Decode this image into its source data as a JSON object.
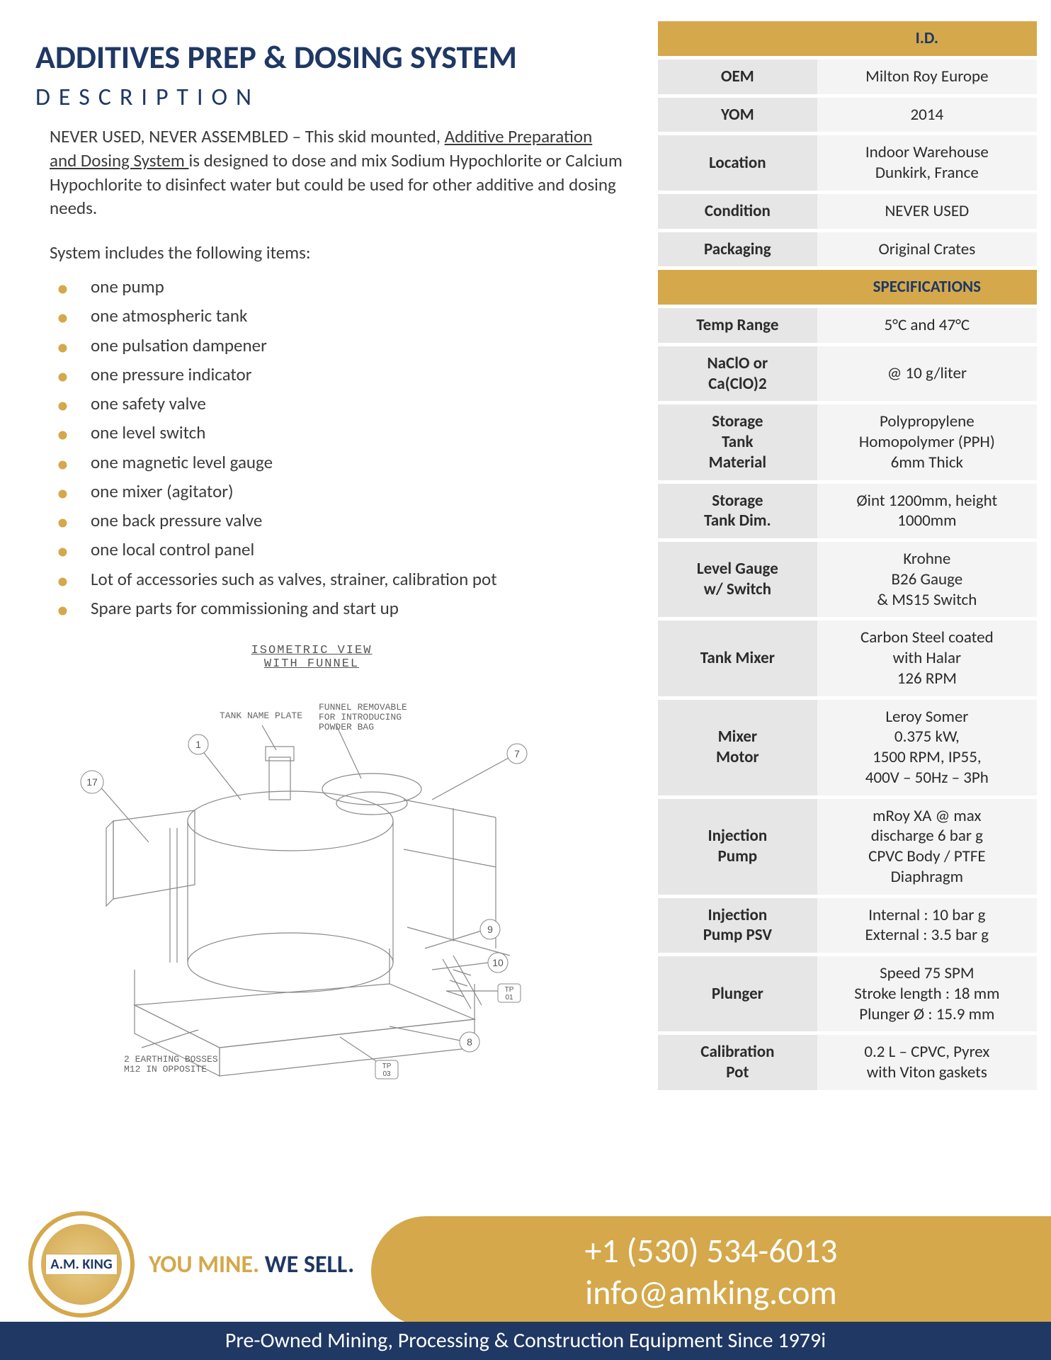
{
  "colors": {
    "navy": "#1f3864",
    "gold": "#d4a84b",
    "body_text": "#3b3b3b",
    "label_bg": "#e6e6e6",
    "value_bg": "#f4f4f4",
    "white": "#ffffff"
  },
  "typography": {
    "main_title_pt": 46,
    "desc_heading_pt": 34,
    "body_pt": 25,
    "table_pt": 23,
    "footer_contact_pt": 48,
    "footer_strap_pt": 30,
    "tagline_pt": 34
  },
  "header": {
    "title": "ADDITIVES PREP & DOSING SYSTEM",
    "description_label": "DESCRIPTION"
  },
  "intro": {
    "lead": "NEVER USED, NEVER ASSEMBLED – This skid mounted, ",
    "underline": "Additive Preparation and Dosing System ",
    "tail": "is designed to dose and mix Sodium Hypochlorite or Calcium Hypochlorite to disinfect water but could be used for other additive and dosing needs."
  },
  "includes_label": "System includes the following items:",
  "bullets": [
    "one pump",
    "one atmospheric tank",
    "one pulsation dampener",
    "one pressure indicator",
    "one safety valve",
    "one level switch",
    "one magnetic level gauge",
    "one mixer (agitator)",
    "one back pressure valve",
    "one local control panel",
    "Lot of accessories such as valves, strainer, calibration pot",
    "Spare parts for commissioning and start up"
  ],
  "diagram": {
    "title_line1": "ISOMETRIC VIEW",
    "title_line2": "WITH FUNNEL",
    "note_top": "FUNNEL REMOVABLE\nFOR INTRODUCING\nPOWDER BAG",
    "note_nameplate": "TANK NAME PLATE",
    "note_bottom": "2 EARTHING BOSSES\nM12 IN OPPOSITE",
    "callouts": [
      "17",
      "1",
      "7",
      "9",
      "10",
      "TP\n01",
      "8",
      "TP\n03"
    ]
  },
  "table": {
    "id_header": {
      "label": "",
      "value": "I.D."
    },
    "rows_top": [
      {
        "label": "OEM",
        "value": "Milton Roy Europe"
      },
      {
        "label": "YOM",
        "value": "2014"
      },
      {
        "label": "Location",
        "value": "Indoor Warehouse\nDunkirk, France"
      },
      {
        "label": "Condition",
        "value": "NEVER USED"
      },
      {
        "label": "Packaging",
        "value": "Original Crates"
      }
    ],
    "spec_header": {
      "label": "",
      "value": "SPECIFICATIONS"
    },
    "rows_spec": [
      {
        "label": "Temp Range",
        "value": "5°C and 47°C"
      },
      {
        "label": "NaClO or\nCa(ClO)2",
        "value": "@ 10 g/liter"
      },
      {
        "label": "Storage\nTank\nMaterial",
        "value": "Polypropylene\nHomopolymer (PPH)\n6mm Thick"
      },
      {
        "label": "Storage\nTank Dim.",
        "value": "Øint 1200mm, height\n1000mm"
      },
      {
        "label": "Level Gauge\nw/ Switch",
        "value": "Krohne\nB26 Gauge\n& MS15 Switch"
      },
      {
        "label": "Tank Mixer",
        "value": "Carbon Steel coated\nwith Halar\n126 RPM"
      },
      {
        "label": "Mixer\nMotor",
        "value": "Leroy Somer\n0.375 kW,\n1500 RPM, IP55,\n400V – 50Hz – 3Ph"
      },
      {
        "label": "Injection\nPump",
        "value": "mRoy XA  @ max\ndischarge 6 bar g\nCPVC Body / PTFE\nDiaphragm"
      },
      {
        "label": "Injection\nPump PSV",
        "value": "Internal : 10 bar g\nExternal : 3.5 bar g"
      },
      {
        "label": "Plunger",
        "value": "Speed 75 SPM\nStroke length : 18 mm\nPlunger Ø : 15.9 mm"
      },
      {
        "label": "Calibration\nPot",
        "value": "0.2 L – CPVC, Pyrex\nwith Viton gaskets"
      }
    ]
  },
  "footer": {
    "logo_text": "A.M. KING",
    "tagline_you": "YOU MINE. ",
    "tagline_we": "WE SELL.",
    "phone": "+1 (530) 534-6013",
    "email": "info@amking.com",
    "strap": "Pre-Owned Mining, Processing & Construction Equipment Since 1979i"
  }
}
